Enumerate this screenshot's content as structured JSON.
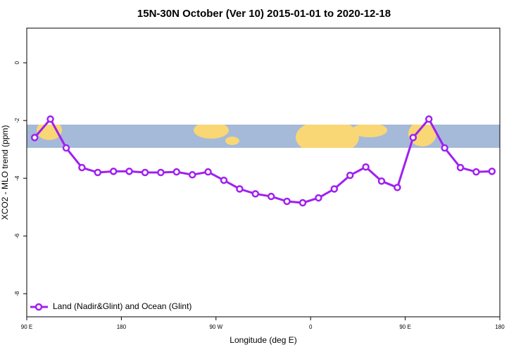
{
  "chart_data": {
    "type": "line",
    "title": "15N-30N October (Ver 10)   2015-01-01 to 2020-12-18",
    "x_label": "Longitude (deg E)",
    "y_label": "XCO2 - MLO trend (ppm)",
    "xlim": [
      90,
      540
    ],
    "xticks": [
      {
        "value": 90,
        "label": "90 E"
      },
      {
        "value": 180,
        "label": "180"
      },
      {
        "value": 270,
        "label": "90 W"
      },
      {
        "value": 360,
        "label": "0"
      },
      {
        "value": 450,
        "label": "90 E"
      },
      {
        "value": 540,
        "label": "180"
      }
    ],
    "ylim": [
      -8.8,
      1.2
    ],
    "yticks": [
      0,
      -2,
      -4,
      -6,
      -8
    ],
    "legend": "bottom-left",
    "x": [
      97.5,
      112.5,
      127.5,
      142.5,
      157.5,
      172.5,
      187.5,
      202.5,
      217.5,
      232.5,
      247.5,
      262.5,
      277.5,
      292.5,
      307.5,
      322.5,
      337.5,
      352.5,
      367.5,
      382.5,
      397.5,
      412.5,
      427.5,
      442.5,
      457.5,
      472.5,
      487.5,
      502.5,
      517.5,
      532.5
    ],
    "series": [
      {
        "name": "Land (Nadir&Glint) and Ocean (Glint)",
        "color": "#a020f0",
        "values": [
          -2.59,
          -1.95,
          -2.95,
          -3.63,
          -3.8,
          -3.76,
          -3.76,
          -3.8,
          -3.8,
          -3.78,
          -3.88,
          -3.78,
          -4.07,
          -4.37,
          -4.54,
          -4.63,
          -4.8,
          -4.85,
          -4.68,
          -4.37,
          -3.9,
          -3.61,
          -4.1,
          -4.32,
          -2.59,
          -1.95,
          -2.95,
          -3.63,
          -3.78,
          -3.76
        ]
      }
    ]
  }
}
